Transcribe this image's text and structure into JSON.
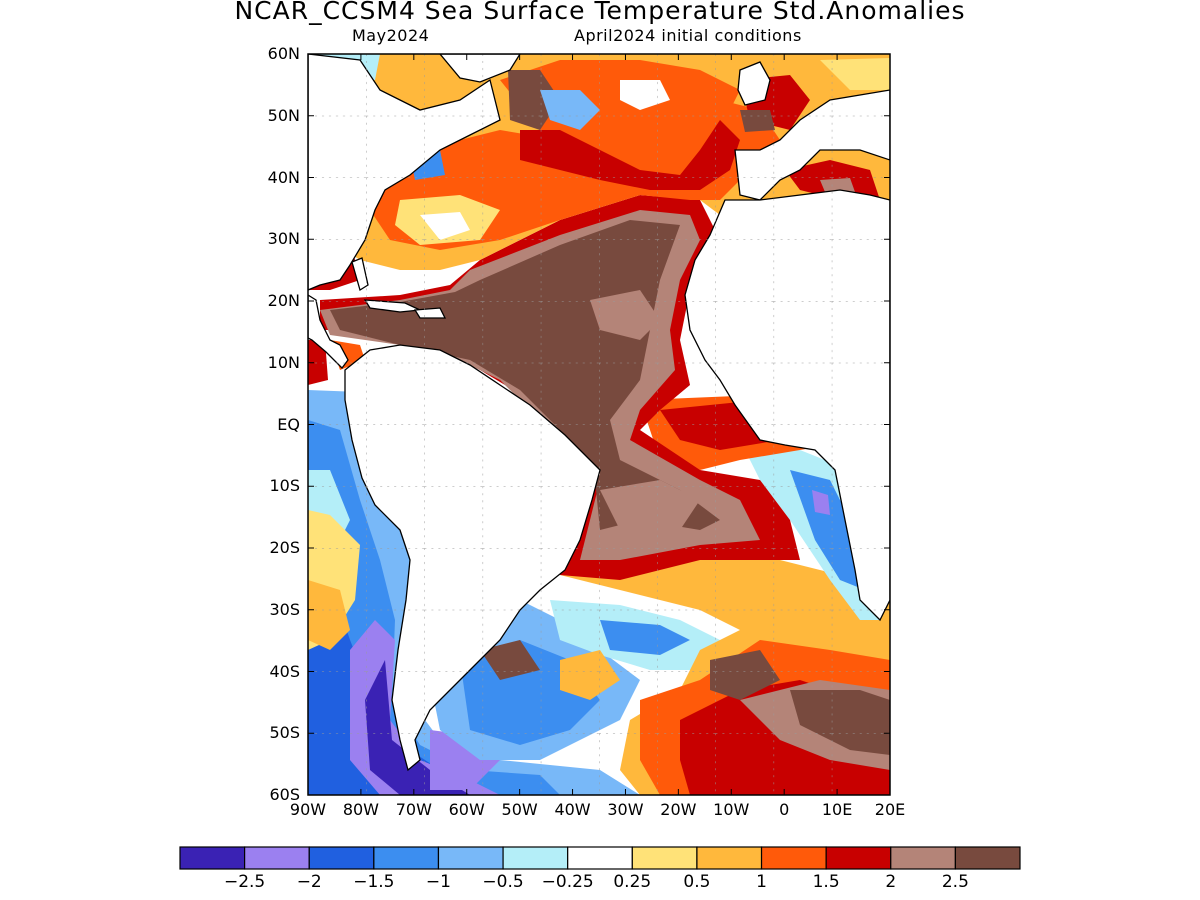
{
  "title": "NCAR_CCSM4 Sea Surface Temperature Std.Anomalies",
  "subtitle_left": "May2024",
  "subtitle_right": "April2024 initial conditions",
  "lat_labels": [
    "60N",
    "50N",
    "40N",
    "30N",
    "20N",
    "10N",
    "EQ",
    "10S",
    "20S",
    "30S",
    "40S",
    "50S",
    "60S"
  ],
  "lon_labels": [
    "90W",
    "80W",
    "70W",
    "60W",
    "50W",
    "40W",
    "30W",
    "20W",
    "10W",
    "0",
    "10E",
    "20E"
  ],
  "colorbar": {
    "colors": [
      "#3a22b4",
      "#9b80f0",
      "#2060e0",
      "#3c8ef0",
      "#78b8f8",
      "#b4eef8",
      "#ffffff",
      "#ffe278",
      "#ffb83c",
      "#ff5a0a",
      "#c80000",
      "#b48478",
      "#784a3e"
    ],
    "labels": [
      "−2.5",
      "−2",
      "−1.5",
      "−1",
      "−0.5",
      "−0.25",
      "0.25",
      "0.5",
      "1",
      "1.5",
      "2",
      "2.5"
    ]
  }
}
